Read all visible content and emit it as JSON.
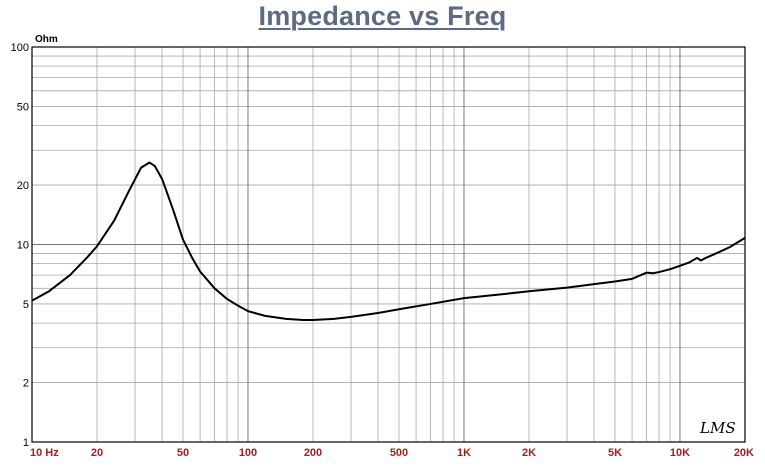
{
  "chart_data": {
    "type": "line",
    "title": "Impedance vs Freq",
    "ylabel": "Ohm",
    "x_scale": "log",
    "y_scale": "log",
    "xlim": [
      10,
      20000
    ],
    "ylim": [
      1,
      100
    ],
    "grid": true,
    "x_tick_labels": [
      "10 Hz",
      "20",
      "50",
      "100",
      "200",
      "500",
      "1K",
      "2K",
      "5K",
      "10K",
      "20K"
    ],
    "x_tick_values": [
      10,
      20,
      50,
      100,
      200,
      500,
      1000,
      2000,
      5000,
      10000,
      20000
    ],
    "y_tick_labels": [
      "100",
      "50",
      "20",
      "10",
      "5",
      "2",
      "1"
    ],
    "y_tick_values": [
      100,
      50,
      20,
      10,
      5,
      2,
      1
    ],
    "watermark": "LMS",
    "series": [
      {
        "color": "#000000",
        "x": [
          10,
          12,
          15,
          18,
          20,
          24,
          28,
          32,
          35,
          37,
          40,
          45,
          50,
          55,
          60,
          70,
          80,
          90,
          100,
          120,
          150,
          180,
          200,
          250,
          300,
          400,
          500,
          700,
          1000,
          1500,
          2000,
          3000,
          4000,
          5000,
          6000,
          7000,
          7500,
          8000,
          9000,
          10000,
          11000,
          12000,
          12500,
          13000,
          15000,
          17000,
          20000
        ],
        "y": [
          5.2,
          5.8,
          7.0,
          8.6,
          9.8,
          13.2,
          18.5,
          24.5,
          26.0,
          25.0,
          21.5,
          15.0,
          10.6,
          8.6,
          7.3,
          6.0,
          5.3,
          4.9,
          4.6,
          4.35,
          4.2,
          4.15,
          4.15,
          4.2,
          4.3,
          4.5,
          4.7,
          5.0,
          5.35,
          5.6,
          5.8,
          6.05,
          6.3,
          6.5,
          6.7,
          7.2,
          7.15,
          7.25,
          7.5,
          7.8,
          8.1,
          8.55,
          8.3,
          8.5,
          9.1,
          9.7,
          10.8
        ]
      }
    ]
  }
}
